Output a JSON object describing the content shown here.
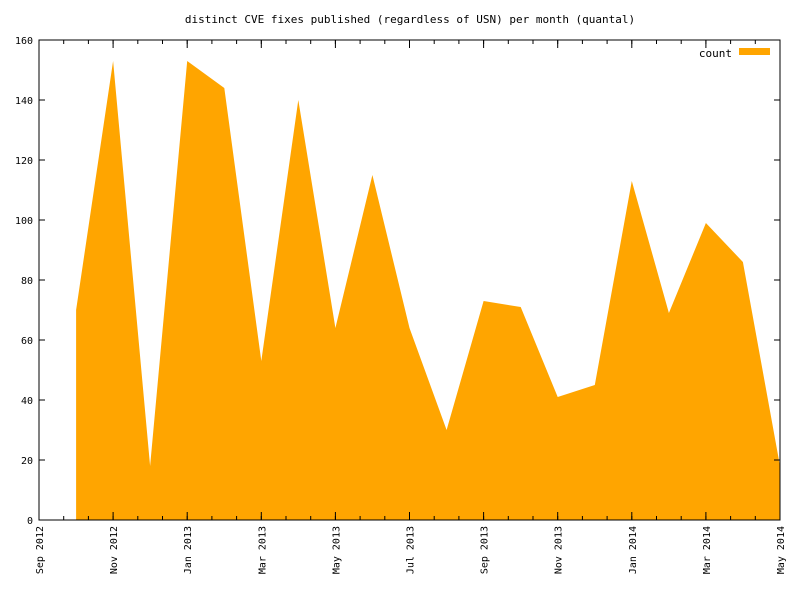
{
  "chart_data": {
    "type": "area",
    "title": "distinct CVE fixes published (regardless of USN) per month (quantal)",
    "xlabel": "",
    "ylabel": "",
    "x_tick_labels": [
      "Sep 2012",
      "Nov 2012",
      "Jan 2013",
      "Mar 2013",
      "May 2013",
      "Jul 2013",
      "Sep 2013",
      "Nov 2013",
      "Jan 2014",
      "Mar 2014",
      "May 2014"
    ],
    "y_tick_labels": [
      "0",
      "20",
      "40",
      "60",
      "80",
      "100",
      "120",
      "140",
      "160"
    ],
    "ylim": [
      0,
      160
    ],
    "xlim": [
      "2012-09",
      "2014-05"
    ],
    "series": [
      {
        "name": "count",
        "color": "#ffa500",
        "points": [
          {
            "x": "2012-10",
            "y": 70
          },
          {
            "x": "2012-11",
            "y": 153
          },
          {
            "x": "2012-12",
            "y": 18
          },
          {
            "x": "2013-01",
            "y": 153
          },
          {
            "x": "2013-02",
            "y": 144
          },
          {
            "x": "2013-03",
            "y": 53
          },
          {
            "x": "2013-04",
            "y": 140
          },
          {
            "x": "2013-05",
            "y": 64
          },
          {
            "x": "2013-06",
            "y": 115
          },
          {
            "x": "2013-07",
            "y": 64
          },
          {
            "x": "2013-08",
            "y": 30
          },
          {
            "x": "2013-09",
            "y": 73
          },
          {
            "x": "2013-10",
            "y": 71
          },
          {
            "x": "2013-11",
            "y": 41
          },
          {
            "x": "2013-12",
            "y": 45
          },
          {
            "x": "2014-01",
            "y": 113
          },
          {
            "x": "2014-02",
            "y": 69
          },
          {
            "x": "2014-03",
            "y": 99
          },
          {
            "x": "2014-04",
            "y": 86
          },
          {
            "x": "2014-05",
            "y": 18
          }
        ]
      }
    ],
    "grid": false,
    "legend_position": "top-right"
  }
}
